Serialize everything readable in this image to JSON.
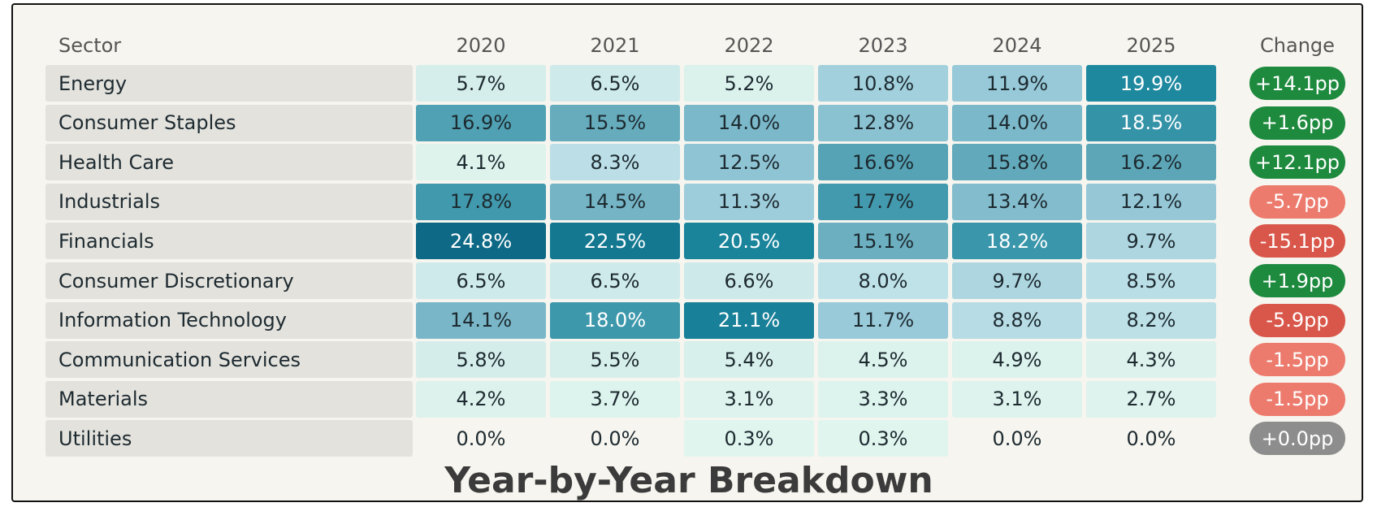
{
  "table": {
    "header": [
      "Sector",
      "2020",
      "2021",
      "2022",
      "2023",
      "2024",
      "2025",
      "Change"
    ],
    "rows": [
      [
        "Energy",
        "5.7%",
        "6.5%",
        "5.2%",
        "10.8%",
        "11.9%",
        "19.9%",
        "+14.1pp"
      ],
      [
        "Consumer Staples",
        "16.9%",
        "15.5%",
        "14.0%",
        "12.8%",
        "14.0%",
        "18.5%",
        "+1.6pp"
      ],
      [
        "Health Care",
        "4.1%",
        "8.3%",
        "12.5%",
        "16.6%",
        "15.8%",
        "16.2%",
        "+12.1pp"
      ],
      [
        "Industrials",
        "17.8%",
        "14.5%",
        "11.3%",
        "17.7%",
        "13.4%",
        "12.1%",
        "-5.7pp"
      ],
      [
        "Financials",
        "24.8%",
        "22.5%",
        "20.5%",
        "15.1%",
        "18.2%",
        "9.7%",
        "-15.1pp"
      ],
      [
        "Consumer Discretionary",
        "6.5%",
        "6.5%",
        "6.6%",
        "8.0%",
        "9.7%",
        "8.5%",
        "+1.9pp"
      ],
      [
        "Information Technology",
        "14.1%",
        "18.0%",
        "21.1%",
        "11.7%",
        "8.8%",
        "8.2%",
        "-5.9pp"
      ],
      [
        "Communication Services",
        "5.8%",
        "5.5%",
        "5.4%",
        "4.5%",
        "4.9%",
        "4.3%",
        "-1.5pp"
      ],
      [
        "Materials",
        "4.2%",
        "3.7%",
        "3.1%",
        "3.3%",
        "3.1%",
        "2.7%",
        "-1.5pp"
      ],
      [
        "Utilities",
        "0.0%",
        "0.0%",
        "0.3%",
        "0.3%",
        "0.0%",
        "0.0%",
        "+0.0pp"
      ]
    ]
  },
  "title": "Year-by-Year Breakdown"
}
